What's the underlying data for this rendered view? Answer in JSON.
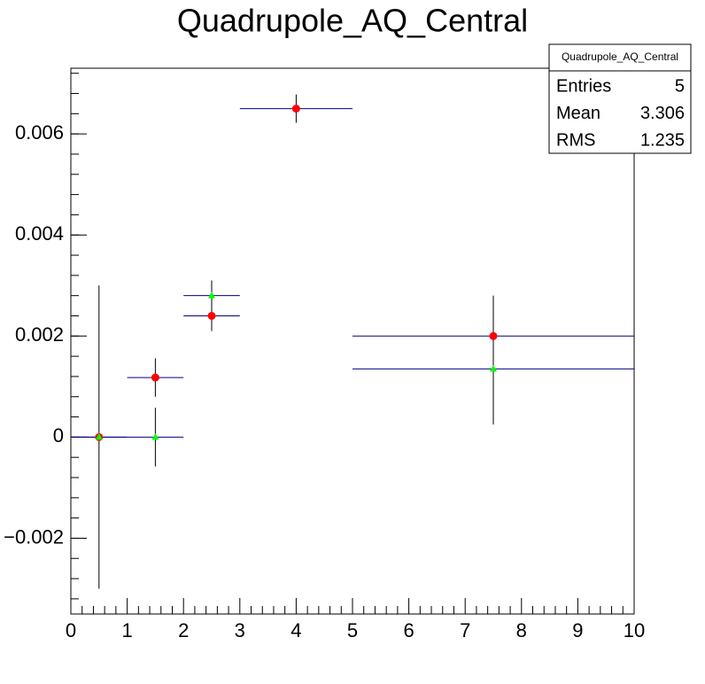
{
  "chart_data": {
    "type": "errorbar",
    "title": "Quadrupole_AQ_Central",
    "xlim": [
      0,
      10
    ],
    "xticks": [
      0,
      1,
      2,
      3,
      4,
      5,
      6,
      7,
      8,
      9,
      10
    ],
    "ylim": [
      -0.0035,
      0.0073
    ],
    "yticks": [
      {
        "value": -0.002,
        "label": "−0.002"
      },
      0,
      0.002,
      0.004,
      0.006
    ],
    "error_color": "#00007f",
    "series": [
      {
        "color": "#ff0000",
        "marker": "circle",
        "x": [
          0.5,
          1.5,
          2.5,
          4,
          7.5
        ],
        "values": [
          0,
          0.00118,
          0.0024,
          0.0065,
          0.002
        ],
        "xerr": [
          0.5,
          0.5,
          0.5,
          1,
          2.5
        ],
        "yerr": [
          0.003,
          0.00038,
          0.0003,
          0.00028,
          0.0008
        ]
      },
      {
        "color": "#00ff00",
        "marker": "triangle",
        "x": [
          0.5,
          1.5,
          2.5,
          7.5
        ],
        "values": [
          0,
          0,
          0.0028,
          0.00135
        ],
        "xerr": [
          0.5,
          0.5,
          0.5,
          2.5
        ],
        "yerr": [
          0,
          0.00058,
          0.0003,
          0.0011
        ]
      }
    ],
    "stats": {
      "title": "Quadrupole_AQ_Central",
      "rows": [
        {
          "label": "Entries",
          "value": 5
        },
        {
          "label": "Mean",
          "value": 3.306
        },
        {
          "label": "RMS",
          "value": 1.235
        }
      ]
    }
  }
}
